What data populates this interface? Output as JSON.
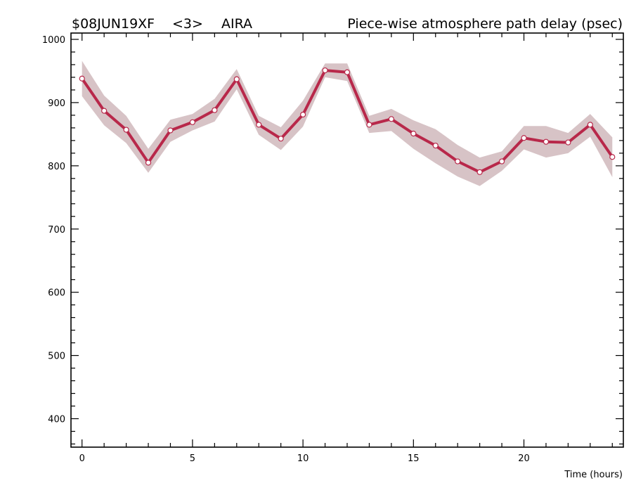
{
  "header": {
    "experiment": "$08JUN19XF",
    "scan": "<3>",
    "station": "AIRA",
    "title": "Piece-wise atmosphere path delay (psec)"
  },
  "chart_data": {
    "type": "line",
    "title": "Piece-wise atmosphere path delay (psec)",
    "xlabel": "Time (hours)",
    "ylabel": "",
    "xlim": [
      -0.5,
      24.5
    ],
    "ylim": [
      355,
      1010
    ],
    "xticks": [
      0,
      5,
      10,
      15,
      20
    ],
    "yticks": [
      400,
      500,
      600,
      700,
      800,
      900,
      1000
    ],
    "grid": false,
    "colors": {
      "line": "#b8284a",
      "band": "#d7c3c6",
      "marker_fill": "#ffffff"
    },
    "series": [
      {
        "x": [
          0,
          1,
          2,
          3,
          4,
          5,
          6,
          7,
          8,
          9,
          10,
          11,
          12,
          13,
          14,
          15,
          16,
          17,
          18,
          19,
          20,
          21,
          22,
          23,
          24
        ],
        "y": [
          938,
          887,
          857,
          805,
          856,
          869,
          888,
          937,
          865,
          843,
          881,
          951,
          948,
          865,
          874,
          851,
          832,
          807,
          790,
          807,
          844,
          838,
          837,
          865,
          814
        ],
        "upper": [
          966,
          911,
          879,
          827,
          873,
          882,
          906,
          953,
          879,
          861,
          903,
          962,
          962,
          879,
          890,
          872,
          858,
          833,
          813,
          823,
          863,
          863,
          852,
          882,
          845
        ],
        "lower": [
          910,
          864,
          836,
          789,
          838,
          856,
          870,
          921,
          849,
          825,
          862,
          940,
          934,
          852,
          855,
          827,
          804,
          783,
          768,
          792,
          826,
          813,
          820,
          846,
          782
        ]
      }
    ]
  }
}
